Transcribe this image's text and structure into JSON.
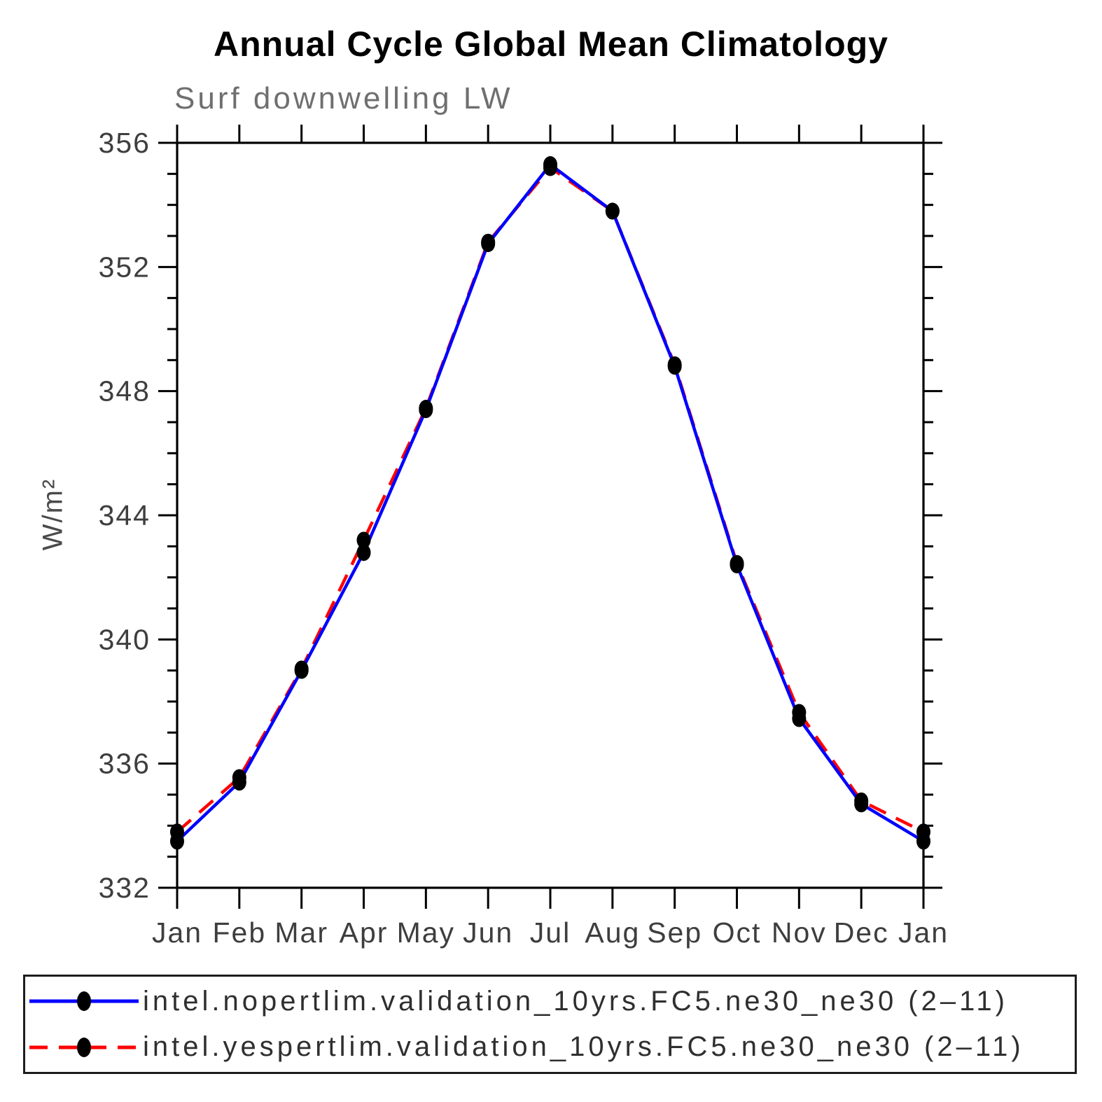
{
  "chart_data": {
    "type": "line",
    "title": "Annual Cycle Global Mean Climatology",
    "subtitle": "Surf downwelling LW",
    "ylabel": "W/m²",
    "xlabel": "",
    "x_categories": [
      "Jan",
      "Feb",
      "Mar",
      "Apr",
      "May",
      "Jun",
      "Jul",
      "Aug",
      "Sep",
      "Oct",
      "Nov",
      "Dec",
      "Jan"
    ],
    "ylim": [
      332,
      356
    ],
    "y_major_step": 4,
    "y_minor_step": 1,
    "y_major_tick_labels": [
      "332",
      "336",
      "340",
      "344",
      "348",
      "352",
      "356"
    ],
    "grid": false,
    "legend_position": "bottom",
    "frame_color": "#000000",
    "marker_color": "#000000",
    "series": [
      {
        "id": "nopertlim",
        "name": "intel.nopertlim.validation_10yrs.FC5.ne30_ne30 (2–11)",
        "color": "#0000ff",
        "style": "solid",
        "dash": "none",
        "marker": "filled-circle",
        "values": [
          333.5,
          335.4,
          339.0,
          342.8,
          347.4,
          352.75,
          355.3,
          353.8,
          348.8,
          342.4,
          337.45,
          334.7,
          333.5
        ]
      },
      {
        "id": "yespertlim",
        "name": "intel.yespertlim.validation_10yrs.FC5.ne30_ne30 (2–11)",
        "color": "#ff0000",
        "style": "dashed",
        "dash": "26 16",
        "marker": "filled-circle",
        "values": [
          333.8,
          335.55,
          339.05,
          343.2,
          347.45,
          352.8,
          355.2,
          353.8,
          348.85,
          342.45,
          337.65,
          334.8,
          333.8
        ]
      }
    ]
  }
}
